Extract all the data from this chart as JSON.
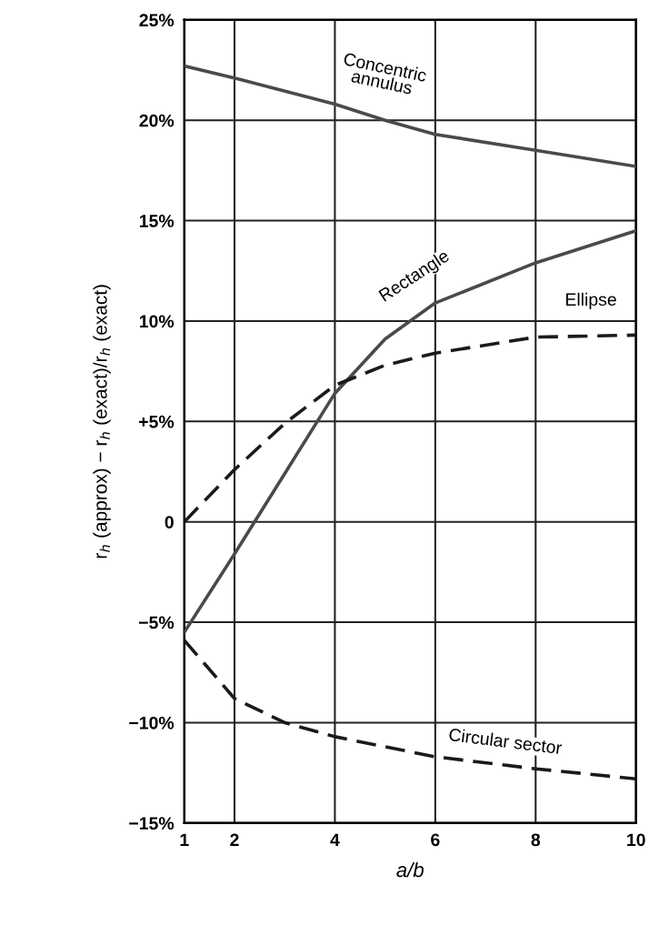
{
  "chart_data": {
    "type": "line",
    "xlabel": "a/b",
    "ylabel": "r$_{h}$ (approx) − r$_{h}$ (exact)/r$_{h}$ (exact)",
    "xlim": [
      1,
      10
    ],
    "xticks": [
      1,
      2,
      4,
      6,
      8,
      10
    ],
    "ylim": [
      -15,
      25
    ],
    "yticks": [
      {
        "value": -15,
        "label": "−15%"
      },
      {
        "value": -10,
        "label": "−10%"
      },
      {
        "value": -5,
        "label": "−5%"
      },
      {
        "value": 0,
        "label": "0"
      },
      {
        "value": 5,
        "label": "+5%"
      },
      {
        "value": 10,
        "label": "10%"
      },
      {
        "value": 15,
        "label": "15%"
      },
      {
        "value": 20,
        "label": "20%"
      },
      {
        "value": 25,
        "label": "25%"
      }
    ],
    "grid": true,
    "marker": "none",
    "series": [
      {
        "x": [
          1,
          2,
          4,
          5,
          6,
          8,
          10
        ],
        "values": [
          22.7,
          22.1,
          20.8,
          20.0,
          19.3,
          18.5,
          17.7
        ],
        "color": "#4a4a4a",
        "line_style": "solid"
      },
      {
        "x": [
          1,
          2,
          3,
          4,
          5,
          6,
          8,
          10
        ],
        "values": [
          -5.5,
          -1.6,
          2.4,
          6.4,
          9.1,
          10.9,
          12.9,
          14.5
        ],
        "color": "#4a4a4a",
        "line_style": "solid"
      },
      {
        "x": [
          1,
          2,
          3,
          4,
          5,
          6,
          8,
          10
        ],
        "values": [
          0,
          2.6,
          4.9,
          6.8,
          7.8,
          8.4,
          9.2,
          9.3
        ],
        "color": "#1a1a1a",
        "line_style": "dashed"
      },
      {
        "x": [
          1,
          2,
          3,
          4,
          6,
          8,
          10
        ],
        "values": [
          -5.9,
          -8.8,
          -10.0,
          -10.7,
          -11.7,
          -12.3,
          -12.8
        ],
        "color": "#1a1a1a",
        "line_style": "dashed"
      }
    ],
    "annotations": [
      "Concentric\nannulus",
      "Rectangle",
      "Ellipse",
      "Circular sector"
    ]
  }
}
